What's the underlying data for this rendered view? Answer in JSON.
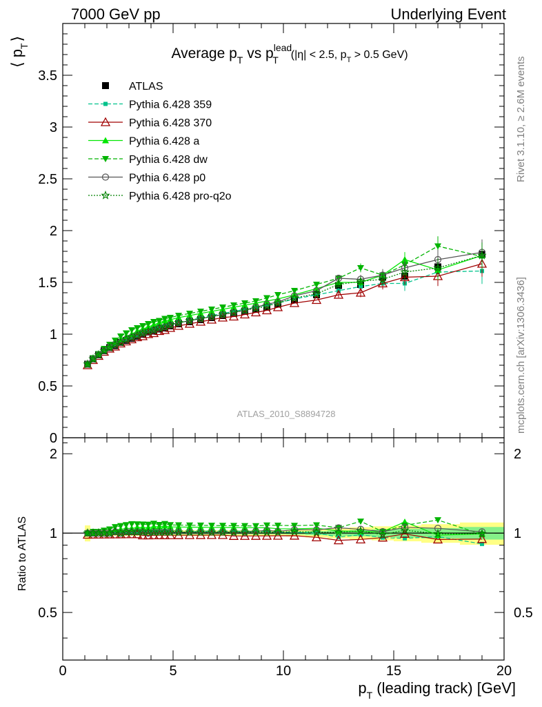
{
  "header": {
    "left": "7000 GeV pp",
    "right": "Underlying Event"
  },
  "side_labels": {
    "rivet": "Rivet 3.1.10, ≥ 2.6M events",
    "mcplots": "mcplots.cern.ch [arXiv:1306.3436]"
  },
  "watermark": "ATLAS_2010_S8894728",
  "chart_data": [
    {
      "type": "scatter",
      "title": {
        "prefix": "Average p",
        "sub1": "T",
        "mid": " vs p",
        "sup2": "lead",
        "sub2": "T",
        "cut": "(|η| < 2.5, p",
        "cutsub": "T",
        "cut_end": " > 0.5 GeV)"
      },
      "ylabel": {
        "main": "⟨ p",
        "sub": "T",
        "close": "⟩"
      },
      "xlim": [
        0,
        20
      ],
      "ylim": [
        0,
        4.0
      ],
      "yticks": [
        {
          "v": 0,
          "label": "0"
        },
        {
          "v": 0.5,
          "label": "0.5"
        },
        {
          "v": 1,
          "label": "1"
        },
        {
          "v": 1.5,
          "label": "1.5"
        },
        {
          "v": 2,
          "label": "2"
        },
        {
          "v": 2.5,
          "label": "2.5"
        },
        {
          "v": 3,
          "label": "3"
        },
        {
          "v": 3.5,
          "label": "3.5"
        }
      ],
      "legend_position": "top-left",
      "series": [
        {
          "name": "ATLAS",
          "color": "#000000",
          "marker": "square",
          "line": "none",
          "x": [
            1.125,
            1.375,
            1.625,
            1.875,
            2.125,
            2.375,
            2.625,
            2.875,
            3.125,
            3.375,
            3.625,
            3.875,
            4.125,
            4.375,
            4.625,
            4.875,
            5.25,
            5.75,
            6.25,
            6.75,
            7.25,
            7.75,
            8.25,
            8.75,
            9.25,
            9.75,
            10.5,
            11.5,
            12.5,
            13.5,
            14.5,
            15.5,
            17,
            19
          ],
          "y": [
            0.71,
            0.76,
            0.8,
            0.84,
            0.87,
            0.89,
            0.92,
            0.94,
            0.96,
            0.98,
            1.0,
            1.02,
            1.03,
            1.05,
            1.06,
            1.08,
            1.1,
            1.12,
            1.14,
            1.16,
            1.18,
            1.2,
            1.22,
            1.24,
            1.26,
            1.29,
            1.33,
            1.38,
            1.47,
            1.48,
            1.55,
            1.56,
            1.65,
            1.77
          ]
        },
        {
          "name": "Pythia 6.428 359",
          "color": "#00c28b",
          "marker": "square-small",
          "line": "dashed",
          "x": [
            1.125,
            1.375,
            1.625,
            1.875,
            2.125,
            2.375,
            2.625,
            2.875,
            3.125,
            3.375,
            3.625,
            3.875,
            4.125,
            4.375,
            4.625,
            4.875,
            5.25,
            5.75,
            6.25,
            6.75,
            7.25,
            7.75,
            8.25,
            8.75,
            9.25,
            9.75,
            10.5,
            11.5,
            12.5,
            13.5,
            14.5,
            15.5,
            17,
            19
          ],
          "y": [
            0.71,
            0.76,
            0.8,
            0.84,
            0.87,
            0.9,
            0.93,
            0.95,
            0.97,
            0.99,
            1.01,
            1.03,
            1.04,
            1.06,
            1.08,
            1.09,
            1.11,
            1.13,
            1.16,
            1.18,
            1.2,
            1.22,
            1.24,
            1.26,
            1.28,
            1.3,
            1.34,
            1.38,
            1.42,
            1.46,
            1.49,
            1.49,
            1.6,
            1.61
          ]
        },
        {
          "name": "Pythia 6.428 370",
          "color": "#a00000",
          "marker": "triangle-open",
          "line": "solid",
          "x": [
            1.125,
            1.375,
            1.625,
            1.875,
            2.125,
            2.375,
            2.625,
            2.875,
            3.125,
            3.375,
            3.625,
            3.875,
            4.125,
            4.375,
            4.625,
            4.875,
            5.25,
            5.75,
            6.25,
            6.75,
            7.25,
            7.75,
            8.25,
            8.75,
            9.25,
            9.75,
            10.5,
            11.5,
            12.5,
            13.5,
            14.5,
            15.5,
            17,
            19
          ],
          "y": [
            0.7,
            0.75,
            0.79,
            0.83,
            0.86,
            0.88,
            0.91,
            0.93,
            0.95,
            0.97,
            0.98,
            1.0,
            1.01,
            1.03,
            1.04,
            1.06,
            1.08,
            1.1,
            1.12,
            1.14,
            1.16,
            1.17,
            1.19,
            1.21,
            1.23,
            1.26,
            1.3,
            1.33,
            1.38,
            1.4,
            1.49,
            1.55,
            1.56,
            1.68
          ]
        },
        {
          "name": "Pythia 6.428 a",
          "color": "#00e600",
          "marker": "triangle",
          "line": "solid",
          "x": [
            1.125,
            1.375,
            1.625,
            1.875,
            2.125,
            2.375,
            2.625,
            2.875,
            3.125,
            3.375,
            3.625,
            3.875,
            4.125,
            4.375,
            4.625,
            4.875,
            5.25,
            5.75,
            6.25,
            6.75,
            7.25,
            7.75,
            8.25,
            8.75,
            9.25,
            9.75,
            10.5,
            11.5,
            12.5,
            13.5,
            14.5,
            15.5,
            17,
            19
          ],
          "y": [
            0.71,
            0.76,
            0.81,
            0.85,
            0.88,
            0.92,
            0.95,
            0.98,
            1.0,
            1.03,
            1.05,
            1.07,
            1.09,
            1.11,
            1.13,
            1.14,
            1.16,
            1.18,
            1.2,
            1.22,
            1.24,
            1.26,
            1.28,
            1.3,
            1.32,
            1.34,
            1.38,
            1.44,
            1.5,
            1.5,
            1.57,
            1.72,
            1.62,
            1.76
          ]
        },
        {
          "name": "Pythia 6.428 dw",
          "color": "#00b400",
          "marker": "triangle-down",
          "line": "dashed",
          "x": [
            1.125,
            1.375,
            1.625,
            1.875,
            2.125,
            2.375,
            2.625,
            2.875,
            3.125,
            3.375,
            3.625,
            3.875,
            4.125,
            4.375,
            4.625,
            4.875,
            5.25,
            5.75,
            6.25,
            6.75,
            7.25,
            7.75,
            8.25,
            8.75,
            9.25,
            9.75,
            10.5,
            11.5,
            12.5,
            13.5,
            14.5,
            15.5,
            17,
            19
          ],
          "y": [
            0.71,
            0.77,
            0.81,
            0.86,
            0.9,
            0.94,
            0.98,
            1.01,
            1.04,
            1.06,
            1.08,
            1.1,
            1.12,
            1.13,
            1.15,
            1.16,
            1.18,
            1.2,
            1.22,
            1.24,
            1.26,
            1.28,
            1.3,
            1.32,
            1.35,
            1.38,
            1.42,
            1.48,
            1.54,
            1.64,
            1.57,
            1.67,
            1.85,
            1.75
          ]
        },
        {
          "name": "Pythia 6.428 p0",
          "color": "#555555",
          "marker": "circle-open",
          "line": "solid",
          "x": [
            1.125,
            1.375,
            1.625,
            1.875,
            2.125,
            2.375,
            2.625,
            2.875,
            3.125,
            3.375,
            3.625,
            3.875,
            4.125,
            4.375,
            4.625,
            4.875,
            5.25,
            5.75,
            6.25,
            6.75,
            7.25,
            7.75,
            8.25,
            8.75,
            9.25,
            9.75,
            10.5,
            11.5,
            12.5,
            13.5,
            14.5,
            15.5,
            17,
            19
          ],
          "y": [
            0.71,
            0.76,
            0.8,
            0.84,
            0.87,
            0.9,
            0.92,
            0.95,
            0.97,
            0.99,
            1.01,
            1.02,
            1.04,
            1.06,
            1.07,
            1.09,
            1.11,
            1.13,
            1.15,
            1.17,
            1.19,
            1.21,
            1.23,
            1.26,
            1.29,
            1.31,
            1.37,
            1.42,
            1.54,
            1.53,
            1.57,
            1.64,
            1.72,
            1.79
          ]
        },
        {
          "name": "Pythia 6.428 pro-q2o",
          "color": "#008000",
          "marker": "star",
          "line": "dotted",
          "x": [
            1.125,
            1.375,
            1.625,
            1.875,
            2.125,
            2.375,
            2.625,
            2.875,
            3.125,
            3.375,
            3.625,
            3.875,
            4.125,
            4.375,
            4.625,
            4.875,
            5.25,
            5.75,
            6.25,
            6.75,
            7.25,
            7.75,
            8.25,
            8.75,
            9.25,
            9.75,
            10.5,
            11.5,
            12.5,
            13.5,
            14.5,
            15.5,
            17,
            19
          ],
          "y": [
            0.71,
            0.76,
            0.8,
            0.84,
            0.87,
            0.9,
            0.92,
            0.95,
            0.97,
            0.99,
            1.01,
            1.03,
            1.04,
            1.06,
            1.07,
            1.09,
            1.11,
            1.13,
            1.15,
            1.17,
            1.19,
            1.21,
            1.23,
            1.25,
            1.27,
            1.3,
            1.35,
            1.39,
            1.48,
            1.51,
            1.53,
            1.6,
            1.64,
            1.76
          ]
        }
      ]
    },
    {
      "type": "line",
      "ylabel": "Ratio to ATLAS",
      "xlabel": {
        "main": "p",
        "sub": "T",
        "rest": " (leading track) [GeV]"
      },
      "xlim": [
        0,
        20
      ],
      "ylim": [
        0.33,
        2.3
      ],
      "yscale": "log",
      "xticks": [
        {
          "v": 0,
          "label": "0"
        },
        {
          "v": 5,
          "label": "5"
        },
        {
          "v": 10,
          "label": "10"
        },
        {
          "v": 15,
          "label": "15"
        },
        {
          "v": 20,
          "label": "20"
        }
      ],
      "yticks": [
        {
          "v": 0.5,
          "label": "0.5"
        },
        {
          "v": 1,
          "label": "1"
        },
        {
          "v": 2,
          "label": "2"
        }
      ],
      "reference_line": 1,
      "band_note": "yellow/green bands show ATLAS total and statistical uncertainty"
    }
  ]
}
